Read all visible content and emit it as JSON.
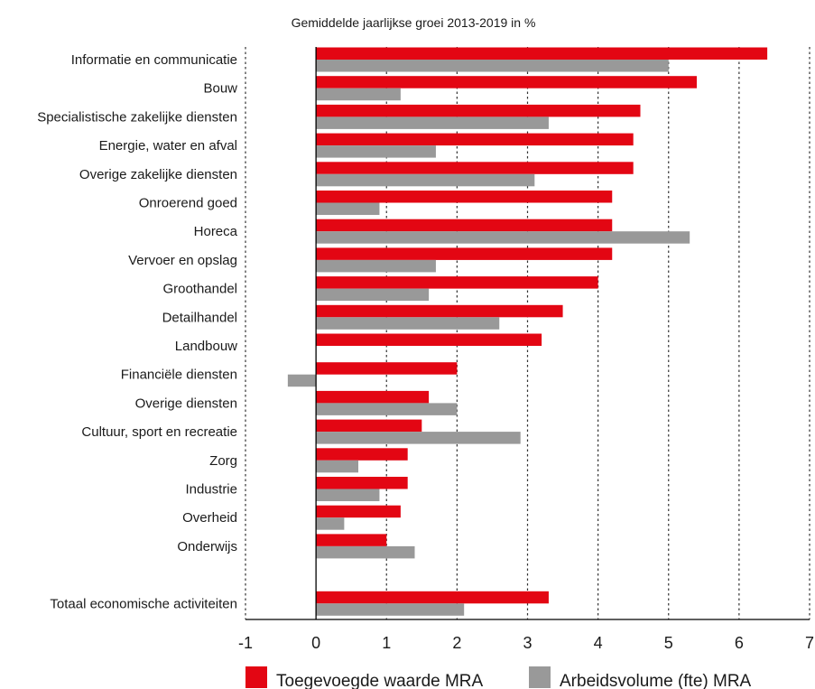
{
  "chart_data": {
    "type": "bar",
    "orientation": "horizontal",
    "title": "Gemiddelde jaarlijkse groei 2013-2019 in %",
    "xlabel": "",
    "ylabel": "",
    "xlim": [
      -1,
      7
    ],
    "xticks": [
      "-1",
      "0",
      "1",
      "2",
      "3",
      "4",
      "5",
      "6",
      "7"
    ],
    "grid": "vertical dashed",
    "legend_position": "bottom",
    "categories": [
      "Informatie en communicatie",
      "Bouw",
      "Specialistische zakelijke diensten",
      "Energie, water en afval",
      "Overige zakelijke diensten",
      "Onroerend goed",
      "Horeca",
      "Vervoer en opslag",
      "Groothandel",
      "Detailhandel",
      "Landbouw",
      "Financiële diensten",
      "Overige diensten",
      "Cultuur, sport en recreatie",
      "Zorg",
      "Industrie",
      "Overheid",
      "Onderwijs",
      "",
      "Totaal economische activiteiten"
    ],
    "series": [
      {
        "name": "Toegevoegde waarde MRA",
        "color": "#e30613",
        "values": [
          6.4,
          5.4,
          4.6,
          4.5,
          4.5,
          4.2,
          4.2,
          4.2,
          4.0,
          3.5,
          3.2,
          2.0,
          1.6,
          1.5,
          1.3,
          1.3,
          1.2,
          1.0,
          null,
          3.3
        ]
      },
      {
        "name": "Arbeidsvolume (fte) MRA",
        "color": "#999999",
        "values": [
          5.0,
          1.2,
          3.3,
          1.7,
          3.1,
          0.9,
          5.3,
          1.7,
          1.6,
          2.6,
          null,
          -0.4,
          2.0,
          2.9,
          0.6,
          0.9,
          0.4,
          1.4,
          null,
          2.1
        ]
      }
    ]
  }
}
